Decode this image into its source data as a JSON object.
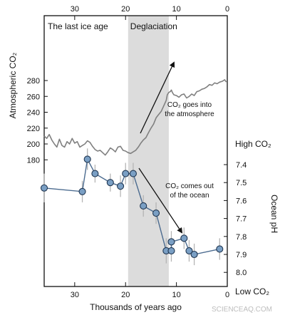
{
  "chart_data": {
    "type": "line",
    "x_axis": {
      "label": "Thousands of years ago",
      "range": [
        36,
        0
      ],
      "reversed": true,
      "ticks": [
        "30",
        "20",
        "10",
        "0"
      ],
      "top_ticks": [
        "30",
        "20",
        "10",
        "0"
      ]
    },
    "y_left": {
      "label": "Atmospheric CO₂",
      "range": [
        180,
        280
      ],
      "ticks": [
        "280",
        "260",
        "240",
        "220",
        "200",
        "180"
      ]
    },
    "y_right": {
      "label": "Ocean pH",
      "range": [
        7.4,
        8.0
      ],
      "ticks": [
        "7.4",
        "7.5",
        "7.6",
        "7.7",
        "7.8",
        "7.9",
        "8.0"
      ],
      "top_label": "High CO₂",
      "bottom_label": "Low CO₂"
    },
    "shaded_region": {
      "label": "Deglaciation",
      "x": [
        19.5,
        11.5
      ]
    },
    "period_labels": [
      "The last ice age"
    ],
    "annotations": [
      {
        "lines": [
          "CO₂ goes into",
          "the atmosphere"
        ]
      },
      {
        "lines": [
          "CO₂ comes out",
          "of the ocean"
        ]
      }
    ],
    "series": [
      {
        "axis": "left",
        "color": "#808080",
        "x": [
          36,
          35.5,
          35,
          34.5,
          34,
          33.5,
          33,
          32.5,
          32,
          31.5,
          31,
          30.5,
          30,
          29.5,
          29,
          28.5,
          28,
          27.5,
          27,
          26.5,
          26,
          25.5,
          25,
          24.5,
          24,
          23.5,
          23,
          22.5,
          22,
          21.5,
          21,
          20.5,
          20,
          19.5,
          19,
          18.5,
          18,
          17.5,
          17,
          16.5,
          16,
          15.5,
          15,
          14.5,
          14,
          13.5,
          13,
          12.5,
          12,
          11.8,
          11.5,
          11.2,
          11,
          10.8,
          10.5,
          10,
          9.5,
          9,
          8.5,
          8,
          7.5,
          7,
          6.5,
          6,
          5.5,
          5,
          4.5,
          4,
          3.5,
          3,
          2.5,
          2,
          1.5,
          1,
          0.5,
          0.2
        ],
        "y": [
          210,
          207,
          212,
          205,
          200,
          196,
          206,
          198,
          196,
          203,
          200,
          207,
          201,
          203,
          196,
          198,
          200,
          204,
          202,
          197,
          193,
          191,
          192,
          189,
          186,
          190,
          195,
          193,
          190,
          196,
          197,
          192,
          191,
          189,
          188,
          190,
          192,
          196,
          201,
          205,
          208,
          214,
          220,
          225,
          233,
          237,
          241,
          248,
          255,
          262,
          265,
          266,
          268,
          265,
          262,
          261,
          259,
          262,
          263,
          258,
          260,
          263,
          261,
          266,
          267,
          269,
          270,
          272,
          275,
          274,
          277,
          276,
          278,
          279,
          281,
          278
        ]
      },
      {
        "axis": "right",
        "color": "#4b6b8f",
        "x": [
          36,
          28.5,
          27.5,
          26,
          23,
          21,
          20,
          18.5,
          16.5,
          14,
          12,
          11,
          11,
          8.5,
          7.5,
          6.5,
          1.5
        ],
        "y": [
          7.53,
          7.55,
          7.37,
          7.45,
          7.5,
          7.52,
          7.45,
          7.45,
          7.63,
          7.67,
          7.88,
          7.88,
          7.83,
          7.81,
          7.88,
          7.9,
          7.87
        ],
        "err": [
          0.08,
          0.06,
          0.06,
          0.05,
          0.05,
          0.06,
          0.06,
          0.06,
          0.06,
          0.06,
          0.07,
          0.06,
          0.06,
          0.06,
          0.06,
          0.06,
          0.06
        ]
      }
    ],
    "grid": false
  },
  "watermark": "SCIENCEAQ.COM"
}
